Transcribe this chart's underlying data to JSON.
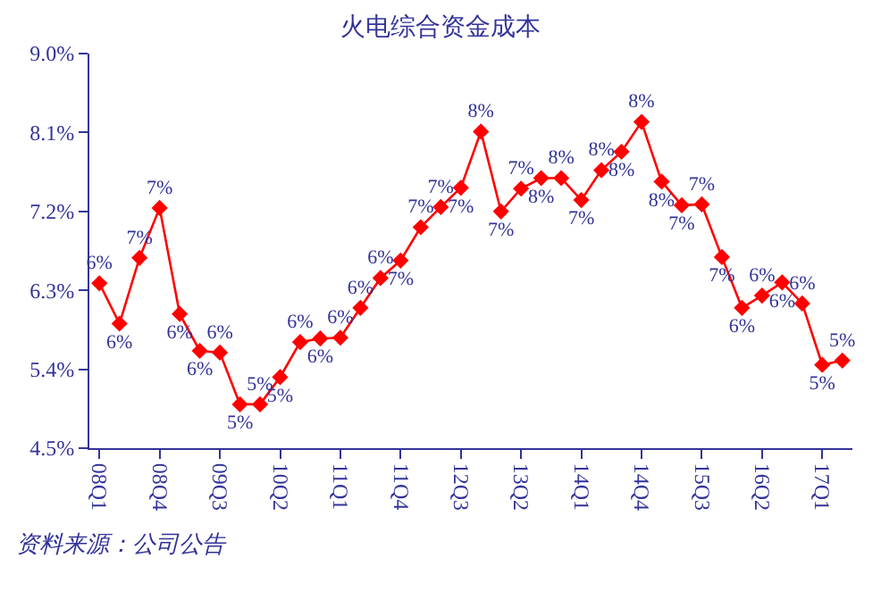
{
  "chart_data": {
    "type": "line",
    "title": "火电综合资金成本",
    "categories": [
      "08Q1",
      null,
      null,
      "08Q4",
      null,
      null,
      "09Q3",
      null,
      null,
      "10Q2",
      null,
      null,
      "11Q1",
      null,
      null,
      "11Q4",
      null,
      null,
      "12Q3",
      null,
      null,
      "13Q2",
      null,
      null,
      "14Q1",
      null,
      null,
      "14Q4",
      null,
      null,
      "15Q3",
      null,
      null,
      "16Q2",
      null,
      null,
      "17Q1",
      null
    ],
    "series": [
      {
        "color": "#ff0000",
        "values": [
          6.38,
          5.92,
          6.67,
          7.24,
          6.03,
          5.61,
          5.59,
          5.0,
          5.0,
          5.31,
          5.71,
          5.75,
          5.76,
          6.1,
          6.44,
          6.64,
          7.02,
          7.25,
          7.47,
          8.11,
          7.2,
          7.46,
          7.58,
          7.58,
          7.33,
          7.67,
          7.88,
          8.22,
          7.54,
          7.27,
          7.28,
          6.68,
          6.1,
          6.24,
          6.39,
          6.15,
          5.45,
          5.5
        ],
        "value_labels": [
          "6%",
          "6%",
          "7%",
          "7%",
          "6%",
          "6%",
          "6%",
          "5%",
          "5%",
          "5%",
          "6%",
          "6%",
          "6%",
          "6%",
          "6%",
          "7%",
          "7%",
          "7%",
          "7%",
          "8%",
          "7%",
          "7%",
          "8%",
          "8%",
          "7%",
          "8%",
          "8%",
          "8%",
          "8%",
          "7%",
          "7%",
          "7%",
          "6%",
          "6%",
          "6%",
          "6%",
          "5%",
          "5%"
        ]
      }
    ],
    "ylim": [
      4.5,
      9.0
    ],
    "yticks": [
      {
        "value": 4.5,
        "label": "4.5%"
      },
      {
        "value": 5.4,
        "label": "5.4%"
      },
      {
        "value": 6.3,
        "label": "6.3%"
      },
      {
        "value": 7.2,
        "label": "7.2%"
      },
      {
        "value": 8.1,
        "label": "8.1%"
      },
      {
        "value": 9.0,
        "label": "9.0%"
      }
    ],
    "marker": "diamond",
    "line_style": "solid",
    "annotations": [
      "资料来源：公司公告"
    ]
  }
}
